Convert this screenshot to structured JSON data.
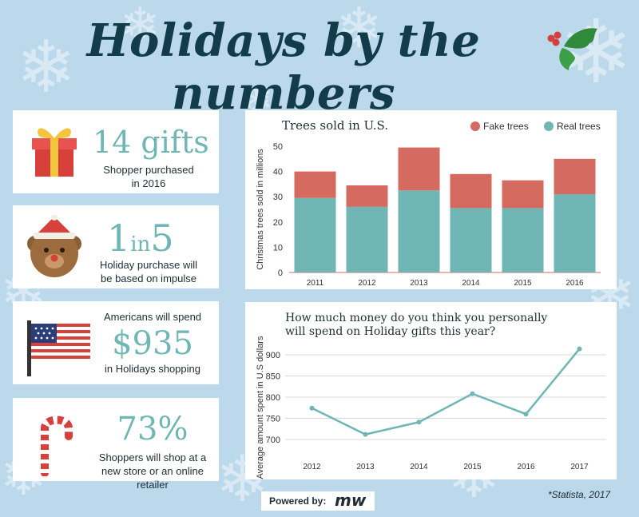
{
  "title": "Holidays by the numbers",
  "stats": [
    {
      "value": "14 gifts",
      "text_1": "Shopper purchased",
      "text_2": "in 2016",
      "icon": "gift-icon"
    },
    {
      "value_big_1": "1",
      "value_small": "in",
      "value_big_2": "5",
      "text_1": "Holiday purchase will",
      "text_2": "be based on impulse",
      "icon": "teddy-bear-icon"
    },
    {
      "pre_text": "Americans will spend",
      "value": "$935",
      "text_1": "in Holidays shopping",
      "icon": "us-flag-icon"
    },
    {
      "value": "73%",
      "text_1": "Shoppers will shop at a",
      "text_2": "new store or an online retailer",
      "icon": "candy-cane-icon"
    }
  ],
  "trees_chart": {
    "title": "Trees sold in U.S."
  },
  "spending_chart": {
    "title_1": "How much money do you think you personally",
    "title_2": "will spend on Holiday gifts this year?"
  },
  "chart_data": [
    {
      "type": "bar",
      "stacked": true,
      "title": "Trees sold in U.S.",
      "ylabel": "Christmas trees sold in millions",
      "xlabel": "",
      "ylim": [
        0,
        50
      ],
      "yticks": [
        0,
        10,
        20,
        30,
        40,
        50
      ],
      "categories": [
        "2011",
        "2012",
        "2013",
        "2014",
        "2015",
        "2016"
      ],
      "legend_position": "top-right",
      "series": [
        {
          "name": "Real trees",
          "color": "#6fb6b5",
          "values": [
            29.5,
            26,
            32.5,
            25.5,
            25.5,
            31
          ]
        },
        {
          "name": "Fake trees",
          "color": "#d46a60",
          "values": [
            10.5,
            8.5,
            17,
            13.5,
            11,
            14
          ]
        }
      ]
    },
    {
      "type": "line",
      "title": "How much money do you think you personally will spend on Holiday gifts this year?",
      "ylabel": "Average amount spent in U.S dollars",
      "xlabel": "",
      "ylim": [
        700,
        900
      ],
      "yticks": [
        700,
        750,
        800,
        850,
        900
      ],
      "x": [
        "2012",
        "2013",
        "2014",
        "2015",
        "2016",
        "2017"
      ],
      "series": [
        {
          "color": "#6fb6b5",
          "values": [
            774,
            712,
            741,
            808,
            760,
            914
          ]
        }
      ]
    }
  ],
  "powered_label": "Powered by:",
  "brand": "mw",
  "source": "*Statista, 2017"
}
